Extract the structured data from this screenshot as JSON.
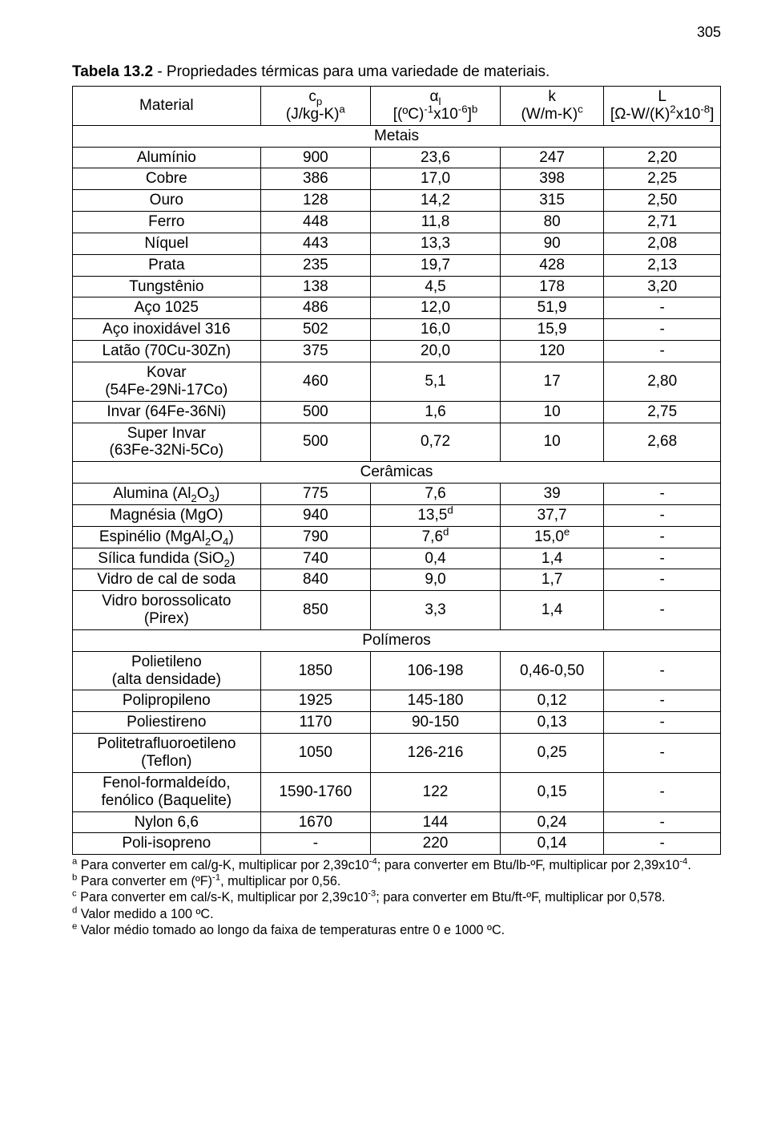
{
  "page_number": "305",
  "caption_bold": "Tabela 13.2",
  "caption_rest": " - Propriedades térmicas para uma variedade de materiais.",
  "headers": {
    "material": "Material",
    "cp_top": "c",
    "cp_sub": "p",
    "cp_bot_pre": "(J/kg-K)",
    "cp_bot_sup": "a",
    "al_top": "α",
    "al_sub": "l",
    "al_bot_pre": "[(ºC)",
    "al_bot_sup1": "-1",
    "al_bot_mid": "x10",
    "al_bot_sup2": "-6",
    "al_bot_post": "]",
    "al_bot_sup3": "b",
    "k_top": "k",
    "k_bot_pre": "(W/m-K)",
    "k_bot_sup": "c",
    "L_top": "L",
    "L_bot_pre": "[Ω-W/(K)",
    "L_bot_sup1": "2",
    "L_bot_mid": "x10",
    "L_bot_sup2": "-8",
    "L_bot_post": "]"
  },
  "sections": {
    "metais": "Metais",
    "ceramicas": "Cerâmicas",
    "polimeros": "Polímeros"
  },
  "metais": [
    {
      "m": "Alumínio",
      "cp": "900",
      "a": "23,6",
      "k": "247",
      "L": "2,20"
    },
    {
      "m": "Cobre",
      "cp": "386",
      "a": "17,0",
      "k": "398",
      "L": "2,25"
    },
    {
      "m": "Ouro",
      "cp": "128",
      "a": "14,2",
      "k": "315",
      "L": "2,50"
    },
    {
      "m": "Ferro",
      "cp": "448",
      "a": "11,8",
      "k": "80",
      "L": "2,71"
    },
    {
      "m": "Níquel",
      "cp": "443",
      "a": "13,3",
      "k": "90",
      "L": "2,08"
    },
    {
      "m": "Prata",
      "cp": "235",
      "a": "19,7",
      "k": "428",
      "L": "2,13"
    },
    {
      "m": "Tungstênio",
      "cp": "138",
      "a": "4,5",
      "k": "178",
      "L": "3,20"
    },
    {
      "m": "Aço 1025",
      "cp": "486",
      "a": "12,0",
      "k": "51,9",
      "L": "-"
    },
    {
      "m": "Aço inoxidável 316",
      "cp": "502",
      "a": "16,0",
      "k": "15,9",
      "L": "-"
    },
    {
      "m": "Latão (70Cu-30Zn)",
      "cp": "375",
      "a": "20,0",
      "k": "120",
      "L": "-"
    },
    {
      "m": "Kovar\n(54Fe-29Ni-17Co)",
      "cp": "460",
      "a": "5,1",
      "k": "17",
      "L": "2,80"
    },
    {
      "m": "Invar (64Fe-36Ni)",
      "cp": "500",
      "a": "1,6",
      "k": "10",
      "L": "2,75"
    },
    {
      "m": "Super Invar\n(63Fe-32Ni-5Co)",
      "cp": "500",
      "a": "0,72",
      "k": "10",
      "L": "2,68"
    }
  ],
  "ceramicas": [
    {
      "m_html": "Alumina (Al<sub>2</sub>O<sub>3</sub>)",
      "cp": "775",
      "a": "7,6",
      "k": "39",
      "L": "-"
    },
    {
      "m_html": "Magnésia (MgO)",
      "cp": "940",
      "a_html": "13,5<sup>d</sup>",
      "k": "37,7",
      "L": "-"
    },
    {
      "m_html": "Espinélio (MgAl<sub>2</sub>O<sub>4</sub>)",
      "cp": "790",
      "a_html": "7,6<sup>d</sup>",
      "k_html": "15,0<sup>e</sup>",
      "L": "-"
    },
    {
      "m_html": "Sílica fundida (SiO<sub>2</sub>)",
      "cp": "740",
      "a": "0,4",
      "k": "1,4",
      "L": "-"
    },
    {
      "m": "Vidro de cal de soda",
      "cp": "840",
      "a": "9,0",
      "k": "1,7",
      "L": "-"
    },
    {
      "m": "Vidro borossolicato\n(Pirex)",
      "cp": "850",
      "a": "3,3",
      "k": "1,4",
      "L": "-"
    }
  ],
  "polimeros": [
    {
      "m": "Polietileno\n(alta densidade)",
      "cp": "1850",
      "a": "106-198",
      "k": "0,46-0,50",
      "L": "-"
    },
    {
      "m": "Polipropileno",
      "cp": "1925",
      "a": "145-180",
      "k": "0,12",
      "L": "-"
    },
    {
      "m": "Poliestireno",
      "cp": "1170",
      "a": "90-150",
      "k": "0,13",
      "L": "-"
    },
    {
      "m": "Politetrafluoroetileno\n(Teflon)",
      "cp": "1050",
      "a": "126-216",
      "k": "0,25",
      "L": "-"
    },
    {
      "m": "Fenol-formaldeído,\nfenólico (Baquelite)",
      "cp": "1590-1760",
      "a": "122",
      "k": "0,15",
      "L": "-"
    },
    {
      "m": "Nylon 6,6",
      "cp": "1670",
      "a": "144",
      "k": "0,24",
      "L": "-"
    },
    {
      "m": "Poli-isopreno",
      "cp": "-",
      "a": "220",
      "k": "0,14",
      "L": "-"
    }
  ],
  "notes": {
    "a": " Para converter em cal/g-K, multiplicar por 2,39c10<sup>-4</sup>; para converter em Btu/lb-ºF, multiplicar por 2,39x10<sup>-4</sup>.",
    "b": " Para converter em (ºF)<sup>-1</sup>, multiplicar por 0,56.",
    "c": " Para converter em cal/s-K, multiplicar por 2,39c10<sup>-3</sup>; para converter em Btu/ft-ºF, multiplicar por 0,578.",
    "d": " Valor medido a 100 ºC.",
    "e": " Valor médio tomado ao longo da faixa de temperaturas entre 0 e 1000 ºC."
  },
  "col_widths": [
    "29%",
    "17%",
    "20%",
    "16%",
    "18%"
  ]
}
